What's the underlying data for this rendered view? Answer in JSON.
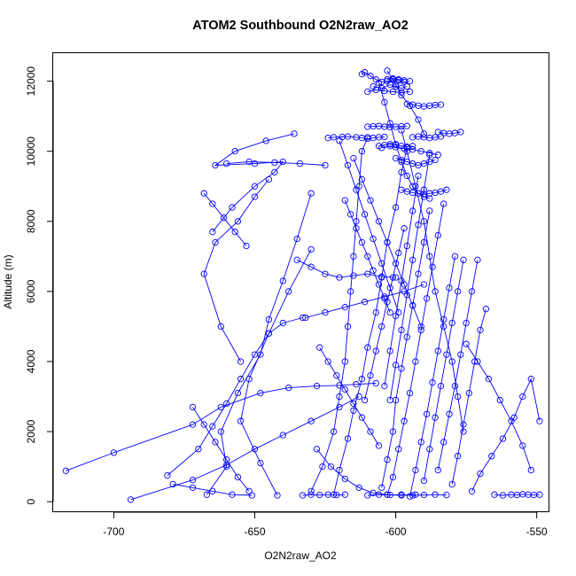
{
  "chart_data": {
    "type": "line",
    "title": "ATOM2 Southbound O2N2raw_AO2",
    "xlabel": "O2N2raw_AO2",
    "ylabel": "Altitude (m)",
    "xlim": [
      -721.5,
      -545.5
    ],
    "ylim": [
      -300,
      12800
    ],
    "xticks": [
      -700,
      -650,
      -600,
      -550
    ],
    "xtick_labels": [
      "-700",
      "-650",
      "-600",
      "-550"
    ],
    "yticks": [
      0,
      2000,
      4000,
      6000,
      8000,
      10000,
      12000
    ],
    "ytick_labels": [
      "0",
      "2000",
      "4000",
      "6000",
      "8000",
      "10000",
      "12000"
    ],
    "marker": "open-circle",
    "line_color": "#0000ff",
    "grid": false,
    "legend": "none",
    "series": [
      {
        "x": [
          -717,
          -700,
          -672,
          -662,
          -648,
          -638,
          -628,
          -620,
          -614,
          -607
        ],
        "y": [
          880,
          1400,
          2200,
          2700,
          3100,
          3250,
          3300,
          3320,
          3350,
          3380
        ]
      },
      {
        "x": [
          -694,
          -672,
          -660,
          -650,
          -640,
          -630,
          -620,
          -613
        ],
        "y": [
          60,
          620,
          1050,
          1500,
          1900,
          2300,
          2700,
          3000
        ]
      },
      {
        "x": [
          -681,
          -670,
          -665,
          -660,
          -655,
          -650,
          -645,
          -640,
          -633
        ],
        "y": [
          750,
          1500,
          2150,
          2800,
          3500,
          4200,
          4800,
          5100,
          5250
        ]
      },
      {
        "x": [
          -667,
          -660,
          -662,
          -656,
          -648,
          -645,
          -640,
          -635,
          -630
        ],
        "y": [
          200,
          1000,
          2000,
          3100,
          4200,
          5200,
          6300,
          7500,
          8800
        ]
      },
      {
        "x": [
          -665,
          -658,
          -650,
          -643,
          -640,
          -650,
          -664,
          -657,
          -646,
          -636
        ],
        "y": [
          7700,
          8400,
          9000,
          9400,
          9700,
          9650,
          9600,
          10000,
          10300,
          10500
        ]
      },
      {
        "x": [
          -655,
          -662,
          -668,
          -664,
          -656,
          -650,
          -645
        ],
        "y": [
          4000,
          5000,
          6500,
          7400,
          8000,
          8700,
          9200
        ]
      },
      {
        "x": [
          -642,
          -648,
          -655,
          -652,
          -645,
          -638,
          -630
        ],
        "y": [
          180,
          1100,
          2300,
          3500,
          4800,
          6000,
          7200
        ]
      },
      {
        "x": [
          -630,
          -626,
          -622,
          -620,
          -618,
          -617,
          -616,
          -615,
          -614,
          -613,
          -612,
          -610
        ],
        "y": [
          300,
          1000,
          2000,
          3000,
          4000,
          5000,
          6000,
          7000,
          8000,
          9000,
          10000,
          10400
        ]
      },
      {
        "x": [
          -624,
          -622,
          -619,
          -617,
          -614,
          -612,
          -610,
          -608,
          -606,
          -604
        ],
        "y": [
          10380,
          10400,
          10410,
          10420,
          10400,
          10380,
          10360,
          10380,
          10400,
          10410
        ]
      },
      {
        "x": [
          -622,
          -620,
          -617,
          -615,
          -612,
          -610,
          -607,
          -605,
          -603,
          -600,
          -598,
          -596
        ],
        "y": [
          200,
          900,
          1800,
          2600,
          3500,
          4400,
          5400,
          6400,
          7400,
          8400,
          9400,
          10100
        ]
      },
      {
        "x": [
          -612,
          -611,
          -609,
          -607,
          -605,
          -603,
          -601,
          -599,
          -597,
          -595
        ],
        "y": [
          12200,
          12250,
          12150,
          12050,
          11980,
          12000,
          12050,
          12020,
          11980,
          12000
        ]
      },
      {
        "x": [
          -610,
          -607,
          -604,
          -601,
          -598,
          -595
        ],
        "y": [
          11700,
          11750,
          11720,
          11700,
          11680,
          11700
        ]
      },
      {
        "x": [
          -608,
          -605,
          -602,
          -600,
          -598,
          -596
        ],
        "y": [
          11850,
          11800,
          11900,
          11850,
          11800,
          11850
        ]
      },
      {
        "x": [
          -606,
          -604,
          -602,
          -600,
          -598,
          -596,
          -594,
          -592,
          -590,
          -588
        ],
        "y": [
          11950,
          11400,
          10800,
          10200,
          9700,
          9300,
          9000,
          8800,
          8700,
          8650
        ]
      },
      {
        "x": [
          -596,
          -594,
          -592,
          -590,
          -588,
          -586,
          -584
        ],
        "y": [
          11350,
          11330,
          11300,
          11280,
          11300,
          11320,
          11330
        ]
      },
      {
        "x": [
          -598,
          -596,
          -594,
          -592,
          -590,
          -588,
          -586,
          -584,
          -582
        ],
        "y": [
          8900,
          8850,
          8820,
          8800,
          8780,
          8800,
          8820,
          8850,
          8900
        ]
      },
      {
        "x": [
          -600,
          -598,
          -596,
          -594,
          -592,
          -590,
          -588,
          -586
        ],
        "y": [
          9800,
          9750,
          9700,
          9650,
          9600,
          9650,
          9700,
          9750
        ]
      },
      {
        "x": [
          -605,
          -602,
          -600,
          -597,
          -594,
          -591,
          -588,
          -585
        ],
        "y": [
          10100,
          10150,
          10120,
          10080,
          10050,
          10000,
          9950,
          9900
        ]
      },
      {
        "x": [
          -598,
          -596,
          -593,
          -590,
          -588,
          -586,
          -583,
          -580,
          -578,
          -576
        ],
        "y": [
          10600,
          10000,
          9000,
          8000,
          7000,
          6000,
          5000,
          4000,
          3000,
          2000
        ]
      },
      {
        "x": [
          -585,
          -583,
          -581,
          -579,
          -577
        ],
        "y": [
          10550,
          10520,
          10500,
          10520,
          10550
        ]
      },
      {
        "x": [
          -605,
          -603,
          -601,
          -600,
          -598,
          -596,
          -594,
          -592,
          -590,
          -588
        ],
        "y": [
          400,
          1200,
          2000,
          2900,
          3800,
          4700,
          5600,
          6500,
          7400,
          8300
        ]
      },
      {
        "x": [
          -603,
          -601,
          -599,
          -597,
          -595,
          -593,
          -591,
          -589,
          -587,
          -585,
          -583
        ],
        "y": [
          200,
          700,
          1500,
          2300,
          3100,
          4000,
          4900,
          5800,
          6700,
          7600,
          8500
        ]
      },
      {
        "x": [
          -595,
          -593,
          -591,
          -589,
          -587,
          -585,
          -583,
          -581,
          -579
        ],
        "y": [
          150,
          900,
          1700,
          2500,
          3400,
          4300,
          5200,
          6100,
          7000
        ]
      },
      {
        "x": [
          -590,
          -588,
          -586,
          -584,
          -582,
          -580,
          -578,
          -576
        ],
        "y": [
          600,
          1500,
          2400,
          3300,
          4200,
          5100,
          6000,
          6900
        ]
      },
      {
        "x": [
          -585,
          -583,
          -581,
          -579,
          -577,
          -575,
          -573,
          -571
        ],
        "y": [
          900,
          1700,
          2500,
          3300,
          4200,
          5100,
          6000,
          6900
        ]
      },
      {
        "x": [
          -580,
          -578,
          -576,
          -574,
          -572,
          -570,
          -568
        ],
        "y": [
          500,
          1300,
          2200,
          3100,
          4000,
          4900,
          5500
        ]
      },
      {
        "x": [
          -573,
          -570,
          -566,
          -562,
          -558,
          -555,
          -552,
          -549
        ],
        "y": [
          300,
          800,
          1300,
          1800,
          2400,
          3000,
          3500,
          2300
        ]
      },
      {
        "x": [
          -565,
          -562,
          -559,
          -557,
          -555,
          -553,
          -551,
          -549
        ],
        "y": [
          200,
          180,
          200,
          190,
          210,
          200,
          190,
          200
        ]
      },
      {
        "x": [
          -575,
          -571,
          -567,
          -563,
          -559,
          -555,
          -552
        ],
        "y": [
          4500,
          4000,
          3500,
          2900,
          2300,
          1600,
          900
        ]
      },
      {
        "x": [
          -615,
          -612,
          -609,
          -606,
          -603,
          -600,
          -597,
          -594,
          -591
        ],
        "y": [
          9800,
          9200,
          8600,
          8000,
          7400,
          6800,
          6200,
          5600,
          5000
        ]
      },
      {
        "x": [
          -620,
          -617,
          -614,
          -611,
          -608,
          -605,
          -602,
          -599
        ],
        "y": [
          10300,
          9600,
          8900,
          8200,
          7500,
          6800,
          6100,
          5400
        ]
      },
      {
        "x": [
          -610,
          -608,
          -606,
          -604,
          -602,
          -600,
          -598,
          -596
        ],
        "y": [
          10700,
          10710,
          10720,
          10700,
          10690,
          10700,
          10710,
          10720
        ]
      },
      {
        "x": [
          -597,
          -599,
          -601,
          -603,
          -605,
          -607,
          -609,
          -611
        ],
        "y": [
          7800,
          7100,
          6400,
          5700,
          5000,
          4300,
          3600,
          2900
        ]
      },
      {
        "x": [
          -592,
          -594,
          -596,
          -598,
          -600,
          -602,
          -604
        ],
        "y": [
          9300,
          8300,
          7300,
          6300,
          5300,
          4300,
          3300
        ]
      },
      {
        "x": [
          -588,
          -590,
          -592,
          -594,
          -596,
          -598,
          -600,
          -602
        ],
        "y": [
          9900,
          8900,
          7900,
          6900,
          5900,
          4900,
          3900,
          2900
        ]
      },
      {
        "x": [
          -635,
          -630,
          -625,
          -620,
          -615,
          -610,
          -605,
          -600
        ],
        "y": [
          6900,
          6700,
          6500,
          6400,
          6450,
          6500,
          6420,
          6400
        ]
      },
      {
        "x": [
          -632,
          -625,
          -618,
          -611,
          -604,
          -597,
          -590
        ],
        "y": [
          5250,
          5400,
          5550,
          5700,
          5850,
          6000,
          6200
        ]
      },
      {
        "x": [
          -628,
          -623,
          -618,
          -613,
          -608,
          -603,
          -598,
          -593
        ],
        "y": [
          1500,
          1000,
          650,
          400,
          250,
          200,
          180,
          200
        ]
      },
      {
        "x": [
          -610,
          -606,
          -602,
          -598,
          -594,
          -590,
          -586,
          -582
        ],
        "y": [
          180,
          200,
          190,
          200,
          180,
          190,
          200,
          190
        ]
      },
      {
        "x": [
          -633,
          -630,
          -627,
          -624,
          -621,
          -618
        ],
        "y": [
          180,
          200,
          190,
          200,
          190,
          200
        ]
      },
      {
        "x": [
          -627,
          -624,
          -621,
          -618,
          -615,
          -612,
          -609,
          -606
        ],
        "y": [
          4400,
          4000,
          3600,
          3200,
          2800,
          2400,
          2000,
          1600
        ]
      },
      {
        "x": [
          -618,
          -616,
          -614,
          -612,
          -610,
          -608,
          -606,
          -604,
          -602
        ],
        "y": [
          8600,
          8200,
          7800,
          7400,
          7000,
          6600,
          6200,
          5800,
          5400
        ]
      },
      {
        "x": [
          -606,
          -604,
          -602,
          -600,
          -598,
          -596,
          -594
        ],
        "y": [
          10150,
          10180,
          10200,
          10180,
          10150,
          10130,
          10150
        ]
      },
      {
        "x": [
          -594,
          -592,
          -590,
          -588,
          -586,
          -584
        ],
        "y": [
          10400,
          10420,
          10400,
          10380,
          10400,
          10420
        ]
      },
      {
        "x": [
          -603,
          -601,
          -599,
          -597
        ],
        "y": [
          12050,
          12080,
          12050,
          12020
        ]
      },
      {
        "x": [
          -603,
          -600,
          -598,
          -595,
          -592,
          -590
        ],
        "y": [
          12300,
          11900,
          11600,
          11300,
          10900,
          10500
        ]
      },
      {
        "x": [
          -660,
          -652,
          -643,
          -634,
          -625
        ],
        "y": [
          9650,
          9700,
          9680,
          9650,
          9600
        ]
      },
      {
        "x": [
          -668,
          -665,
          -661,
          -657,
          -653
        ],
        "y": [
          8800,
          8500,
          8100,
          7700,
          7300
        ]
      },
      {
        "x": [
          -672,
          -668,
          -664,
          -660,
          -656,
          -652
        ],
        "y": [
          2700,
          2200,
          1700,
          1200,
          700,
          300
        ]
      },
      {
        "x": [
          -679,
          -672,
          -665,
          -658,
          -651
        ],
        "y": [
          500,
          400,
          300,
          200,
          180
        ]
      }
    ]
  }
}
